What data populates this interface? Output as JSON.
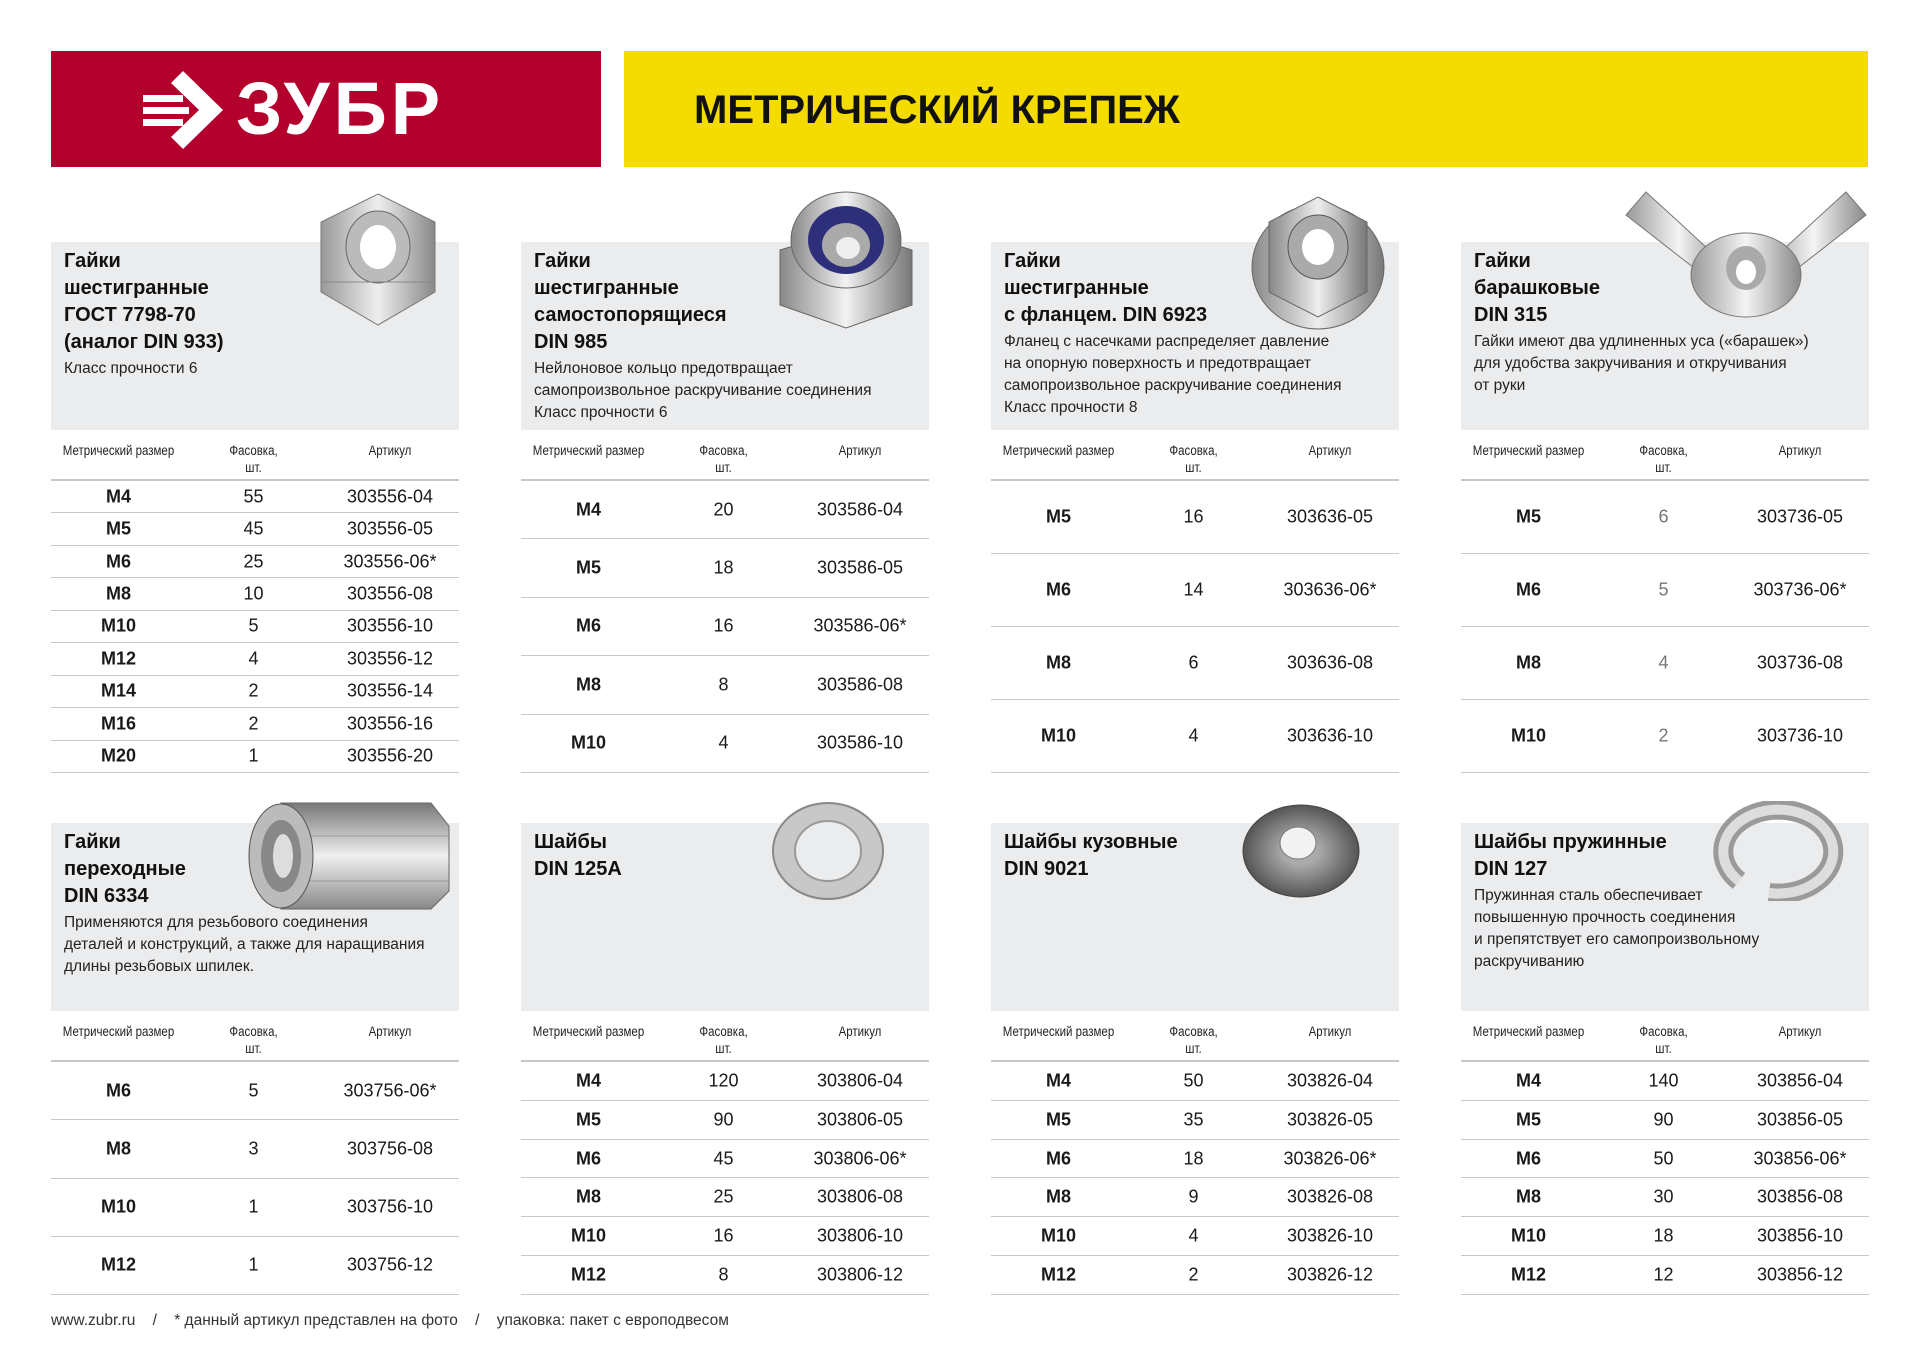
{
  "brand": {
    "logo_text": "ЗУБР",
    "color": "#b4002c"
  },
  "header": {
    "title": "МЕТРИЧЕСКИЙ КРЕПЕЖ",
    "color": "#f4dc00"
  },
  "table_headers": {
    "size": "Метрический размер",
    "pack": "Фасовка,\nшт.",
    "article": "Артикул"
  },
  "sections": [
    {
      "title": "Гайки\nшестигранные\nГОСТ 7798-70\n(аналог DIN 933)",
      "description": "Класс прочности 6",
      "image": "hex-nut",
      "rows": [
        [
          "M4",
          "55",
          "303556-04"
        ],
        [
          "M5",
          "45",
          "303556-05"
        ],
        [
          "M6",
          "25",
          "303556-06*"
        ],
        [
          "M8",
          "10",
          "303556-08"
        ],
        [
          "M10",
          "5",
          "303556-10"
        ],
        [
          "M12",
          "4",
          "303556-12"
        ],
        [
          "M14",
          "2",
          "303556-14"
        ],
        [
          "M16",
          "2",
          "303556-16"
        ],
        [
          "M20",
          "1",
          "303556-20"
        ]
      ]
    },
    {
      "title": "Гайки\nшестигранные\nсамостопорящиеся\nDIN 985",
      "description": "Нейлоновое кольцо предотвращает\nсамопроизвольное раскручивание соединения\nКласс прочности 6",
      "image": "nylon-lock-nut",
      "rows": [
        [
          "M4",
          "20",
          "303586-04"
        ],
        [
          "M5",
          "18",
          "303586-05"
        ],
        [
          "M6",
          "16",
          "303586-06*"
        ],
        [
          "M8",
          "8",
          "303586-08"
        ],
        [
          "M10",
          "4",
          "303586-10"
        ]
      ]
    },
    {
      "title": "Гайки\nшестигранные\nс фланцем.  DIN 6923",
      "description": "Фланец с насечками распределяет давление\nна опорную поверхность и предотвращает\nсамопроизвольное раскручивание соединения\nКласс прочности 8",
      "image": "flange-nut",
      "rows": [
        [
          "M5",
          "16",
          "303636-05"
        ],
        [
          "M6",
          "14",
          "303636-06*"
        ],
        [
          "M8",
          "6",
          "303636-08"
        ],
        [
          "M10",
          "4",
          "303636-10"
        ]
      ]
    },
    {
      "title": "Гайки\nбарашковые\nDIN 315",
      "description": "Гайки имеют два удлиненных уса («барашек»)\nдля удобства закручивания и откручивания\nот руки",
      "image": "wing-nut",
      "rows": [
        [
          "M5",
          "6",
          "303736-05"
        ],
        [
          "M6",
          "5",
          "303736-06*"
        ],
        [
          "M8",
          "4",
          "303736-08"
        ],
        [
          "M10",
          "2",
          "303736-10"
        ]
      ]
    },
    {
      "title": "Гайки\nпереходные\nDIN 6334",
      "description": "Применяются для резьбового соединения\nдеталей и конструкций, а также для наращивания\nдлины резьбовых шпилек.",
      "image": "coupling-nut",
      "rows": [
        [
          "M6",
          "5",
          "303756-06*"
        ],
        [
          "M8",
          "3",
          "303756-08"
        ],
        [
          "M10",
          "1",
          "303756-10"
        ],
        [
          "M12",
          "1",
          "303756-12"
        ]
      ]
    },
    {
      "title": "Шайбы\nDIN 125A",
      "description": "",
      "image": "flat-washer",
      "rows": [
        [
          "M4",
          "120",
          "303806-04"
        ],
        [
          "M5",
          "90",
          "303806-05"
        ],
        [
          "M6",
          "45",
          "303806-06*"
        ],
        [
          "M8",
          "25",
          "303806-08"
        ],
        [
          "M10",
          "16",
          "303806-10"
        ],
        [
          "M12",
          "8",
          "303806-12"
        ]
      ]
    },
    {
      "title": "Шайбы кузовные\nDIN 9021",
      "description": "",
      "image": "body-washer",
      "rows": [
        [
          "M4",
          "50",
          "303826-04"
        ],
        [
          "M5",
          "35",
          "303826-05"
        ],
        [
          "M6",
          "18",
          "303826-06*"
        ],
        [
          "M8",
          "9",
          "303826-08"
        ],
        [
          "M10",
          "4",
          "303826-10"
        ],
        [
          "M12",
          "2",
          "303826-12"
        ]
      ]
    },
    {
      "title": "Шайбы пружинные\nDIN 127",
      "description": "Пружинная сталь обеспечивает\nповышенную прочность соединения\nи препятствует его самопроизвольному\nраскручиванию",
      "image": "spring-washer",
      "rows": [
        [
          "M4",
          "140",
          "303856-04"
        ],
        [
          "M5",
          "90",
          "303856-05"
        ],
        [
          "M6",
          "50",
          "303856-06*"
        ],
        [
          "M8",
          "30",
          "303856-08"
        ],
        [
          "M10",
          "18",
          "303856-10"
        ],
        [
          "M12",
          "12",
          "303856-12"
        ]
      ]
    }
  ],
  "footer": {
    "site": "www.zubr.ru",
    "note": "* данный артикул представлен на фото",
    "packaging": "упаковка: пакет с европодвесом",
    "separator": "/"
  }
}
